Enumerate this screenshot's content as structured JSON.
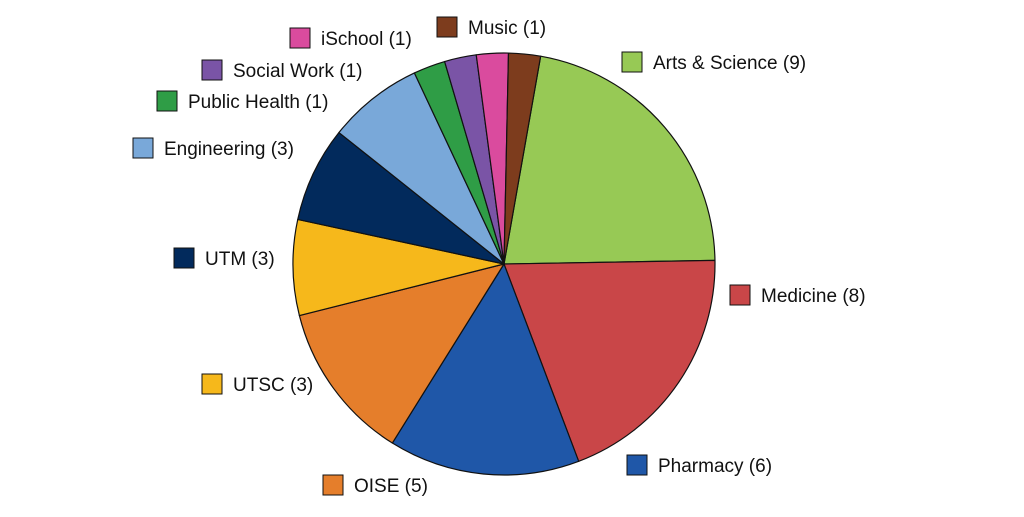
{
  "chart_data": {
    "type": "pie",
    "title": "",
    "slices": [
      {
        "label": "Arts & Science (9)",
        "category": "Arts & Science",
        "value": 9,
        "color": "#97c955",
        "icon": "arts-science"
      },
      {
        "label": "Medicine (8)",
        "category": "Medicine",
        "value": 8,
        "color": "#c94648",
        "icon": "medicine"
      },
      {
        "label": "Pharmacy (6)",
        "category": "Pharmacy",
        "value": 6,
        "color": "#1f57a8",
        "icon": "pharmacy"
      },
      {
        "label": "OISE (5)",
        "category": "OISE",
        "value": 5,
        "color": "#e57e2b",
        "icon": "oise"
      },
      {
        "label": "UTSC (3)",
        "category": "UTSC",
        "value": 3,
        "color": "#f6b81b",
        "icon": "utsc"
      },
      {
        "label": "UTM (3)",
        "category": "UTM",
        "value": 3,
        "color": "#022a5c",
        "icon": "utm"
      },
      {
        "label": "Engineering (3)",
        "category": "Engineering",
        "value": 3,
        "color": "#79a8d9",
        "icon": "engineering"
      },
      {
        "label": "Public Health (1)",
        "category": "Public Health",
        "value": 1,
        "color": "#2f9d46",
        "icon": "public-health"
      },
      {
        "label": "Social Work (1)",
        "category": "Social Work",
        "value": 1,
        "color": "#7a54a6",
        "icon": "social-work"
      },
      {
        "label": "iSchool (1)",
        "category": "iSchool",
        "value": 1,
        "color": "#da4b9e",
        "icon": "ischool"
      },
      {
        "label": "Music (1)",
        "category": "Music",
        "value": 1,
        "color": "#7d3c1d",
        "icon": "music"
      }
    ]
  }
}
